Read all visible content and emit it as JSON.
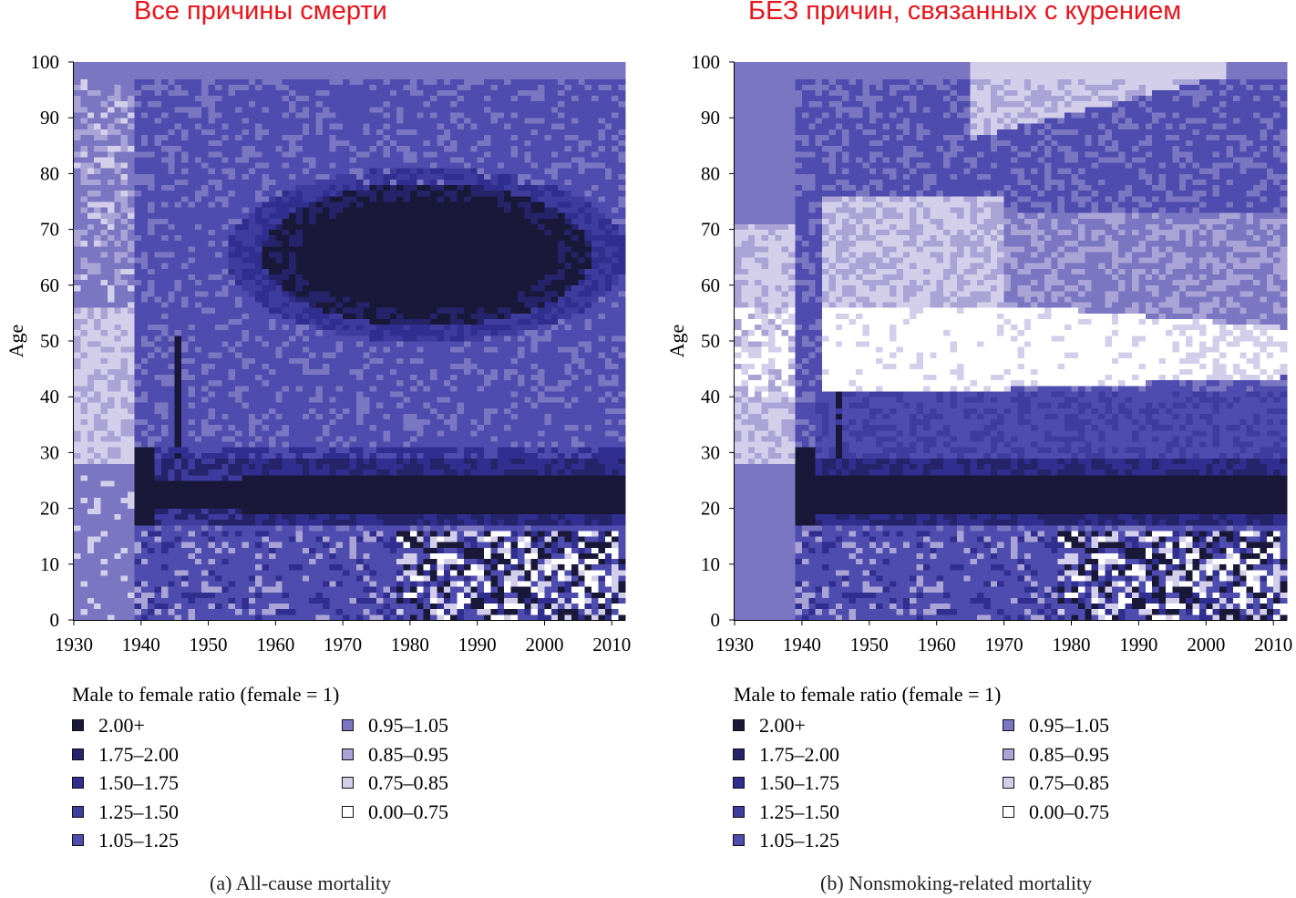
{
  "chart_data": [
    {
      "type": "heatmap",
      "title": "Все причины смерти",
      "caption": "(a)  All-cause mortality",
      "xlabel": "",
      "ylabel": "Age",
      "xlim": [
        1930,
        2012
      ],
      "ylim": [
        0,
        100
      ],
      "xticks": [
        "1930",
        "1940",
        "1950",
        "1960",
        "1970",
        "1980",
        "1990",
        "2000",
        "2010"
      ],
      "yticks": [
        "0",
        "10",
        "20",
        "30",
        "40",
        "50",
        "60",
        "70",
        "80",
        "90",
        "100"
      ],
      "legend_title": "Male to female ratio (female = 1)",
      "regions": [
        {
          "name": "young-adult-excess",
          "x": [
            1940,
            2012
          ],
          "y": [
            17,
            30
          ],
          "value": "2.00+"
        },
        {
          "name": "older-male-excess",
          "x": [
            1962,
            2000
          ],
          "y": [
            55,
            78
          ],
          "value": "2.00+"
        },
        {
          "name": "prewar-adult-band",
          "x": [
            1930,
            1940
          ],
          "y": [
            28,
            55
          ],
          "value": "0.75-0.85"
        },
        {
          "name": "child-noise",
          "x": [
            1978,
            2012
          ],
          "y": [
            0,
            15
          ],
          "value": "mixed"
        }
      ]
    },
    {
      "type": "heatmap",
      "title": "БЕЗ причин, связанных с курением",
      "caption": "(b)  Nonsmoking-related mortality",
      "xlabel": "",
      "ylabel": "Age",
      "xlim": [
        1930,
        2012
      ],
      "ylim": [
        0,
        100
      ],
      "xticks": [
        "1930",
        "1940",
        "1950",
        "1960",
        "1970",
        "1980",
        "1990",
        "2000",
        "2010"
      ],
      "yticks": [
        "0",
        "10",
        "20",
        "30",
        "40",
        "50",
        "60",
        "70",
        "80",
        "90",
        "100"
      ],
      "legend_title": "Male to female ratio (female = 1)",
      "regions": [
        {
          "name": "young-adult-excess",
          "x": [
            1940,
            2012
          ],
          "y": [
            17,
            30
          ],
          "value": "2.00+"
        },
        {
          "name": "female-excess-band",
          "x": [
            1943,
            1990
          ],
          "y": [
            41,
            55
          ],
          "value": "0.00-0.75"
        },
        {
          "name": "old-age-light",
          "x": [
            1965,
            2002
          ],
          "y": [
            88,
            100
          ],
          "value": "0.75-0.85"
        },
        {
          "name": "child-noise",
          "x": [
            1978,
            2012
          ],
          "y": [
            0,
            15
          ],
          "value": "mixed"
        }
      ]
    }
  ],
  "legend": [
    {
      "label": "2.00+",
      "color": "#1a1838"
    },
    {
      "label": "1.75–2.00",
      "color": "#25236a"
    },
    {
      "label": "1.50–1.75",
      "color": "#302e8e"
    },
    {
      "label": "1.25–1.50",
      "color": "#3e3c9e"
    },
    {
      "label": "1.05–1.25",
      "color": "#4e4cae"
    },
    {
      "label": "0.95–1.05",
      "color": "#7a76c2"
    },
    {
      "label": "0.85–0.95",
      "color": "#a9a3d6"
    },
    {
      "label": "0.75–0.85",
      "color": "#d3cfea"
    },
    {
      "label": "0.00–0.75",
      "color": "#ffffff"
    }
  ]
}
